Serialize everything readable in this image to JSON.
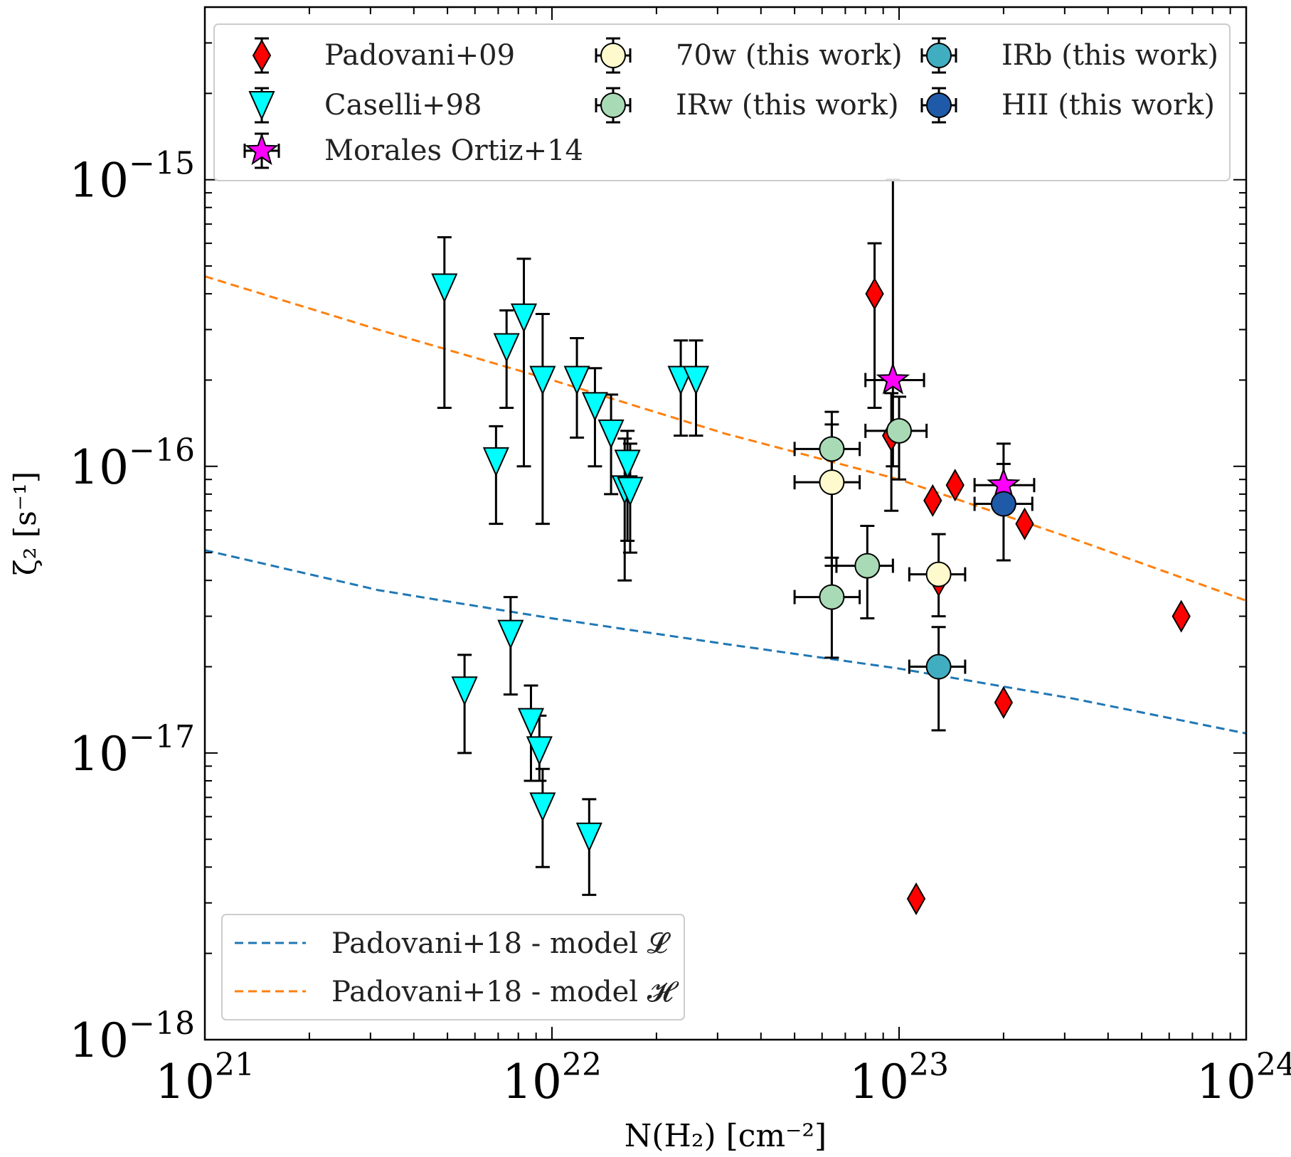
{
  "chart_data": {
    "type": "scatter",
    "xlabel": "N(H₂) [cm⁻²]",
    "ylabel": "ζ₂ [s⁻¹]",
    "xscale": "log",
    "yscale": "log",
    "xlim": [
      1e+21,
      1e+24
    ],
    "ylim": [
      1e-18,
      4e-15
    ],
    "grid": false,
    "x_ticks": [
      {
        "value": 1e+21,
        "base": "10",
        "exp": "21"
      },
      {
        "value": 1e+22,
        "base": "10",
        "exp": "22"
      },
      {
        "value": 1e+23,
        "base": "10",
        "exp": "23"
      },
      {
        "value": 1e+24,
        "base": "10",
        "exp": "24"
      }
    ],
    "y_ticks": [
      {
        "value": 1e-18,
        "base": "10",
        "exp": "−18"
      },
      {
        "value": 1e-17,
        "base": "10",
        "exp": "−17"
      },
      {
        "value": 1e-16,
        "base": "10",
        "exp": "−16"
      },
      {
        "value": 1e-15,
        "base": "10",
        "exp": "−15"
      }
    ],
    "legend_markers_placement": "top",
    "legend_lines_placement": "bottom-left",
    "series": [
      {
        "name": "Padovani+09",
        "marker": "diamond",
        "color": "#ff0000",
        "points": [
          {
            "x": 8.5e+22,
            "y": 4e-16,
            "ylo": 1.6e-16,
            "yhi": 6e-16
          },
          {
            "x": 9.5e+22,
            "y": 1.28e-16,
            "ylo": 7e-17,
            "yhi": 1.8e-16
          },
          {
            "x": 1.12e+23,
            "y": 3.1e-18
          },
          {
            "x": 1.25e+23,
            "y": 7.6e-17
          },
          {
            "x": 1.45e+23,
            "y": 8.6e-17
          },
          {
            "x": 1.3e+23,
            "y": 4e-17
          },
          {
            "x": 2e+23,
            "y": 1.5e-17
          },
          {
            "x": 2.3e+23,
            "y": 6.3e-17
          },
          {
            "x": 6.5e+23,
            "y": 3e-17
          }
        ]
      },
      {
        "name": "Caselli+98",
        "marker": "triangle-down",
        "color": "#00ffff",
        "points": [
          {
            "x": 4.9e+21,
            "y": 4.2e-16,
            "ylo": 1.6e-16,
            "yhi": 6.3e-16
          },
          {
            "x": 6.9e+21,
            "y": 1.04e-16,
            "ylo": 6.3e-17,
            "yhi": 1.38e-16
          },
          {
            "x": 7.4e+21,
            "y": 2.6e-16,
            "ylo": 1.6e-16,
            "yhi": 3.5e-16
          },
          {
            "x": 8.3e+21,
            "y": 3.3e-16,
            "ylo": 1e-16,
            "yhi": 5.3e-16
          },
          {
            "x": 9.4e+21,
            "y": 2e-16,
            "ylo": 6.3e-17,
            "yhi": 3.4e-16
          },
          {
            "x": 1.18e+22,
            "y": 2e-16,
            "ylo": 1.26e-16,
            "yhi": 2.8e-16
          },
          {
            "x": 1.33e+22,
            "y": 1.62e-16,
            "ylo": 1e-16,
            "yhi": 2.2e-16
          },
          {
            "x": 1.48e+22,
            "y": 1.3e-16,
            "ylo": 8e-17,
            "yhi": 1.78e-16
          },
          {
            "x": 1.62e+22,
            "y": 8.3e-17,
            "ylo": 4e-17,
            "yhi": 1.25e-16
          },
          {
            "x": 1.65e+22,
            "y": 1.02e-16,
            "ylo": 5.5e-17,
            "yhi": 1.33e-16
          },
          {
            "x": 1.68e+22,
            "y": 8.2e-17,
            "ylo": 5e-17,
            "yhi": 1.2e-16
          },
          {
            "x": 2.35e+22,
            "y": 2e-16,
            "ylo": 1.28e-16,
            "yhi": 2.75e-16
          },
          {
            "x": 2.6e+22,
            "y": 2e-16,
            "ylo": 1.28e-16,
            "yhi": 2.75e-16
          },
          {
            "x": 5.6e+21,
            "y": 1.65e-17,
            "ylo": 1e-17,
            "yhi": 2.2e-17
          },
          {
            "x": 7.6e+21,
            "y": 2.6e-17,
            "ylo": 1.6e-17,
            "yhi": 3.5e-17
          },
          {
            "x": 8.7e+21,
            "y": 1.28e-17,
            "ylo": 8e-18,
            "yhi": 1.72e-17
          },
          {
            "x": 9.2e+21,
            "y": 1.02e-17,
            "ylo": 8e-18,
            "yhi": 1.35e-17
          },
          {
            "x": 9.4e+21,
            "y": 6.5e-18,
            "ylo": 4e-18,
            "yhi": 8.8e-18
          },
          {
            "x": 1.28e+22,
            "y": 5.1e-18,
            "ylo": 3.2e-18,
            "yhi": 6.9e-18
          }
        ]
      },
      {
        "name": "Morales Ortiz+14",
        "marker": "star",
        "color": "#ff00ff",
        "points": [
          {
            "x": 9.6e+22,
            "y": 2e-16,
            "xlo": 8e+22,
            "xhi": 1.18e+23,
            "ylo": 1e-16,
            "yhi": 1e-15
          },
          {
            "x": 2e+23,
            "y": 8.6e-17,
            "xlo": 1.65e+23,
            "xhi": 2.45e+23,
            "ylo": 7e-17,
            "yhi": 1.02e-16
          }
        ]
      },
      {
        "name": "70w (this work)",
        "marker": "circle",
        "color": "#fffacd",
        "points": [
          {
            "x": 6.4e+22,
            "y": 8.8e-17,
            "xlo": 5e+22,
            "xhi": 7.7e+22,
            "ylo": 3.5e-17,
            "yhi": 1.4e-16
          },
          {
            "x": 1.3e+23,
            "y": 4.2e-17,
            "xlo": 1.07e+23,
            "xhi": 1.55e+23,
            "ylo": 3e-17,
            "yhi": 5.8e-17
          }
        ]
      },
      {
        "name": "IRw (this work)",
        "marker": "circle",
        "color": "#a8dbb5",
        "points": [
          {
            "x": 6.4e+22,
            "y": 1.15e-16,
            "xlo": 5e+22,
            "xhi": 7.7e+22,
            "ylo": 4.5e-17,
            "yhi": 1.55e-16
          },
          {
            "x": 1e+23,
            "y": 1.33e-16,
            "xlo": 8e+22,
            "xhi": 1.2e+23,
            "ylo": 9e-17,
            "yhi": 1.75e-16
          },
          {
            "x": 8.1e+22,
            "y": 4.5e-17,
            "xlo": 6.6e+22,
            "xhi": 9.6e+22,
            "ylo": 2.95e-17,
            "yhi": 6.2e-17
          },
          {
            "x": 6.4e+22,
            "y": 3.5e-17,
            "xlo": 5e+22,
            "xhi": 7.7e+22,
            "ylo": 2.15e-17,
            "yhi": 4.8e-17
          }
        ]
      },
      {
        "name": "IRb (this work)",
        "marker": "circle",
        "color": "#40aec0",
        "points": [
          {
            "x": 1.3e+23,
            "y": 2e-17,
            "xlo": 1.07e+23,
            "xhi": 1.55e+23,
            "ylo": 1.2e-17,
            "yhi": 2.75e-17
          }
        ]
      },
      {
        "name": "HII (this work)",
        "marker": "circle",
        "color": "#1f5aa8",
        "points": [
          {
            "x": 2e+23,
            "y": 7.4e-17,
            "xlo": 1.65e+23,
            "xhi": 2.42e+23,
            "ylo": 4.7e-17,
            "yhi": 1.2e-16
          }
        ]
      }
    ],
    "lines": [
      {
        "name": "Padovani+18 - model 𝓛",
        "color": "#1f77b4",
        "style": "dashed",
        "points": [
          [
            1e+21,
            5.1e-17
          ],
          [
            3.16e+21,
            3.7e-17
          ],
          [
            1e+22,
            2.95e-17
          ],
          [
            3.16e+22,
            2.4e-17
          ],
          [
            1e+23,
            1.97e-17
          ],
          [
            3.16e+23,
            1.55e-17
          ],
          [
            1e+24,
            1.17e-17
          ]
        ]
      },
      {
        "name": "Padovani+18 - model 𝓗",
        "color": "#ff7f0e",
        "style": "dashed",
        "points": [
          [
            1e+21,
            4.6e-16
          ],
          [
            3.16e+21,
            3e-16
          ],
          [
            1e+22,
            2e-16
          ],
          [
            3.16e+22,
            1.3e-16
          ],
          [
            1e+23,
            9e-17
          ],
          [
            3.16e+23,
            5.6e-17
          ],
          [
            1e+24,
            3.4e-17
          ]
        ]
      }
    ]
  }
}
